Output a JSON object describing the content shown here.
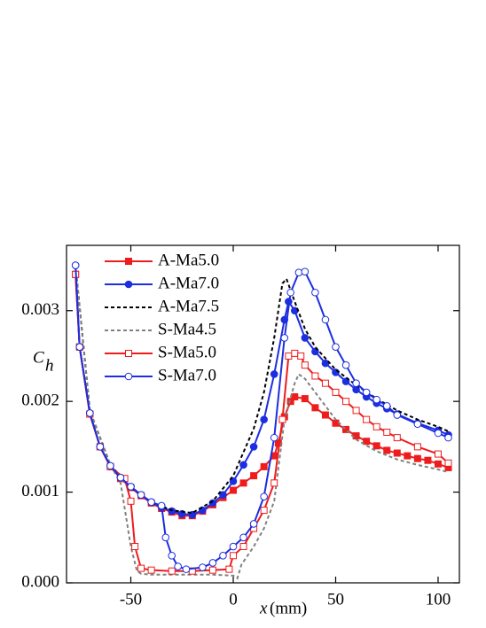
{
  "chart_data": {
    "type": "line",
    "xlabel": {
      "var": "x",
      "unit": "(mm)"
    },
    "ylabel": {
      "text": "C",
      "sub": "h"
    },
    "xlim": [
      -81.4,
      110.4
    ],
    "xticks": [
      -50,
      0,
      50,
      100
    ],
    "ylim": [
      0,
      0.00372
    ],
    "yticks": [
      {
        "value": 0,
        "label": "0.000"
      },
      {
        "value": 0.001,
        "label": "0.001"
      },
      {
        "value": 0.002,
        "label": "0.002"
      },
      {
        "value": 0.003,
        "label": "0.003"
      }
    ],
    "legend": "upper left",
    "series": [
      {
        "name": "A-Ma5.0",
        "color": "#ee1c1c",
        "marker": "square",
        "filled": true,
        "dash": false,
        "x": [
          -77,
          -75,
          -70,
          -65,
          -60,
          -55,
          -50,
          -45,
          -40,
          -35,
          -30,
          -25,
          -20,
          -15,
          -10,
          -5,
          0,
          5,
          10,
          15,
          20,
          22,
          25,
          28,
          30,
          35,
          40,
          45,
          50,
          55,
          60,
          65,
          70,
          75,
          80,
          85,
          90,
          95,
          100,
          105
        ],
        "values": [
          0.0034,
          0.0026,
          0.00186,
          0.0015,
          0.00128,
          0.00115,
          0.00105,
          0.00096,
          0.00088,
          0.00082,
          0.00078,
          0.00074,
          0.00074,
          0.00079,
          0.00086,
          0.00094,
          0.00102,
          0.0011,
          0.00118,
          0.00128,
          0.0014,
          0.00154,
          0.00183,
          0.002,
          0.00205,
          0.00203,
          0.00193,
          0.00185,
          0.00176,
          0.00169,
          0.00162,
          0.00156,
          0.00151,
          0.00146,
          0.00143,
          0.0014,
          0.00137,
          0.00135,
          0.00131,
          0.00127
        ]
      },
      {
        "name": "A-Ma7.0",
        "color": "#1c2ee0",
        "marker": "circle",
        "filled": true,
        "dash": false,
        "x": [
          -77,
          -75,
          -70,
          -65,
          -60,
          -55,
          -50,
          -45,
          -40,
          -35,
          -30,
          -25,
          -20,
          -15,
          -10,
          -5,
          0,
          5,
          10,
          15,
          20,
          25,
          27,
          30,
          35,
          40,
          45,
          50,
          55,
          60,
          65,
          70,
          75,
          80,
          90,
          100,
          105
        ],
        "values": [
          0.0035,
          0.0026,
          0.00187,
          0.0015,
          0.00129,
          0.00116,
          0.00106,
          0.00097,
          0.00089,
          0.00083,
          0.00079,
          0.00076,
          0.00075,
          0.0008,
          0.00088,
          0.00097,
          0.00112,
          0.0013,
          0.0015,
          0.0018,
          0.0023,
          0.0029,
          0.0031,
          0.003,
          0.0027,
          0.00255,
          0.00242,
          0.00232,
          0.00222,
          0.00213,
          0.00205,
          0.00198,
          0.00192,
          0.00186,
          0.00176,
          0.00168,
          0.00163
        ]
      },
      {
        "name": "A-Ma7.5",
        "color": "#000000",
        "marker": null,
        "filled": false,
        "dash": true,
        "x": [
          -77,
          -70,
          -60,
          -50,
          -40,
          -30,
          -20,
          -10,
          0,
          10,
          15,
          20,
          24,
          26,
          30,
          35,
          40,
          50,
          60,
          70,
          80,
          90,
          100,
          105
        ],
        "values": [
          0.0035,
          0.0019,
          0.0013,
          0.00105,
          0.00089,
          0.0008,
          0.00077,
          0.0009,
          0.00118,
          0.0017,
          0.0021,
          0.0027,
          0.0033,
          0.00335,
          0.0031,
          0.0028,
          0.0026,
          0.00235,
          0.00218,
          0.00203,
          0.0019,
          0.0018,
          0.00172,
          0.00167
        ]
      },
      {
        "name": "S-Ma4.5",
        "color": "#808080",
        "marker": null,
        "filled": false,
        "dash": true,
        "x": [
          -77,
          -70,
          -60,
          -55,
          -50,
          -47,
          -45,
          -40,
          -30,
          -20,
          -10,
          0,
          2,
          4,
          10,
          15,
          20,
          25,
          30,
          32,
          35,
          40,
          50,
          60,
          70,
          80,
          90,
          100,
          105
        ],
        "values": [
          0.0035,
          0.0019,
          0.0013,
          0.0011,
          0.0004,
          0.00013,
          0.0001,
          9e-05,
          9e-05,
          9e-05,
          9e-05,
          8e-05,
          5e-05,
          0.0002,
          0.0004,
          0.0006,
          0.0009,
          0.0018,
          0.0022,
          0.0023,
          0.00225,
          0.0021,
          0.0018,
          0.00158,
          0.00145,
          0.00136,
          0.0013,
          0.00125,
          0.00122
        ]
      },
      {
        "name": "S-Ma5.0",
        "color": "#ee1c1c",
        "marker": "square",
        "filled": false,
        "dash": false,
        "x": [
          -77,
          -75,
          -70,
          -65,
          -60,
          -53,
          -50,
          -48,
          -45,
          -40,
          -30,
          -20,
          -10,
          -2,
          0,
          5,
          10,
          15,
          20,
          24,
          27,
          30,
          33,
          35,
          40,
          45,
          50,
          55,
          60,
          65,
          70,
          75,
          80,
          90,
          100,
          105
        ],
        "values": [
          0.0034,
          0.0026,
          0.00186,
          0.0015,
          0.00128,
          0.00115,
          0.0009,
          0.0004,
          0.00016,
          0.00014,
          0.00013,
          0.00013,
          0.00014,
          0.00015,
          0.0003,
          0.0004,
          0.0006,
          0.0008,
          0.0011,
          0.0018,
          0.0025,
          0.00253,
          0.0025,
          0.0024,
          0.00228,
          0.0022,
          0.0021,
          0.002,
          0.0019,
          0.0018,
          0.00172,
          0.00166,
          0.0016,
          0.0015,
          0.00142,
          0.00132
        ]
      },
      {
        "name": "S-Ma7.0",
        "color": "#1c2ee0",
        "marker": "circle",
        "filled": false,
        "dash": false,
        "x": [
          -77,
          -75,
          -70,
          -65,
          -60,
          -55,
          -50,
          -45,
          -40,
          -35,
          -33,
          -30,
          -27,
          -23,
          -15,
          -10,
          -5,
          0,
          5,
          10,
          15,
          20,
          25,
          28,
          32,
          35,
          40,
          45,
          50,
          55,
          60,
          65,
          70,
          75,
          80,
          90,
          100,
          105
        ],
        "values": [
          0.0035,
          0.0026,
          0.00187,
          0.0015,
          0.00129,
          0.00116,
          0.00106,
          0.00097,
          0.00089,
          0.00085,
          0.0005,
          0.0003,
          0.00018,
          0.00015,
          0.00017,
          0.00022,
          0.0003,
          0.0004,
          0.0005,
          0.00065,
          0.00095,
          0.0016,
          0.0027,
          0.0032,
          0.00342,
          0.00343,
          0.0032,
          0.0029,
          0.0026,
          0.0024,
          0.0022,
          0.0021,
          0.00202,
          0.00195,
          0.00185,
          0.00175,
          0.00165,
          0.0016
        ]
      }
    ]
  }
}
